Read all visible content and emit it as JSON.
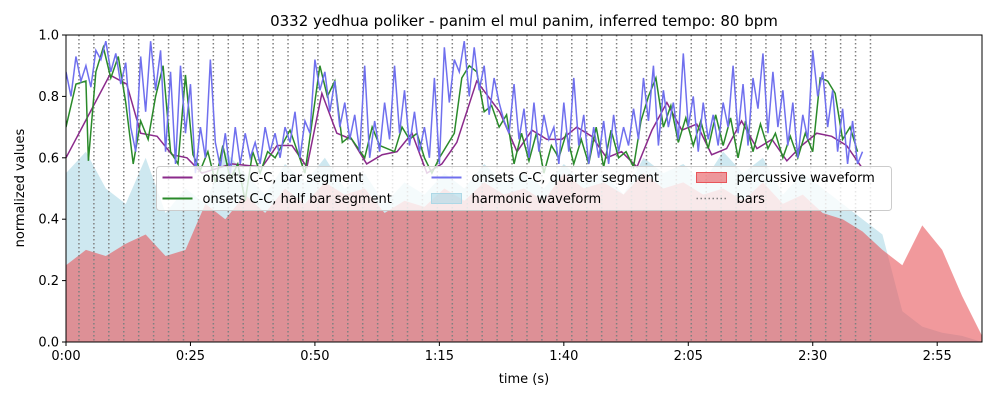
{
  "chart_data": {
    "type": "line",
    "title": "0332 yedhua poliker - panim el mul panim, inferred tempo: 80 bpm",
    "xlabel": "time (s)",
    "ylabel": "normalized values",
    "xlim": [
      0,
      184
    ],
    "ylim": [
      0,
      1
    ],
    "xticks": [
      {
        "value": 0,
        "label": "0:00"
      },
      {
        "value": 25,
        "label": "0:25"
      },
      {
        "value": 50,
        "label": "0:50"
      },
      {
        "value": 75,
        "label": "1:15"
      },
      {
        "value": 100,
        "label": "1:40"
      },
      {
        "value": 125,
        "label": "2:05"
      },
      {
        "value": 150,
        "label": "2:30"
      },
      {
        "value": 175,
        "label": "2:55"
      }
    ],
    "yticks": [
      {
        "value": 0,
        "label": "0.0"
      },
      0.2,
      0.4,
      0.6,
      0.8,
      {
        "value": 1,
        "label": "1.0"
      }
    ],
    "legend": "center",
    "series": [
      {
        "name": "onsets C-C, bar segment",
        "style": "line",
        "color": "#8b2a8b",
        "x": [
          0,
          8.8,
          12.2,
          15,
          18.3,
          21.3,
          24.3,
          27.3,
          33.3,
          39.4,
          42.4,
          45.4,
          48.4,
          51.4,
          54.4,
          57.4,
          60.4,
          63.5,
          66.5,
          69.5,
          72.5,
          75.5,
          78.5,
          82.5,
          87.1,
          90.6,
          93.6,
          96.6,
          99.6,
          102.6,
          105.6,
          108.6,
          111.6,
          114.7,
          117.7,
          120.7,
          123.7,
          126.7,
          129.7,
          132.7,
          135.7,
          138.8,
          141.8,
          144.8,
          147.8,
          150.8,
          153.8,
          156.8,
          159.8
        ],
        "values": [
          0.6,
          0.87,
          0.84,
          0.68,
          0.67,
          0.61,
          0.6,
          0.55,
          0.58,
          0.57,
          0.64,
          0.64,
          0.57,
          0.81,
          0.68,
          0.66,
          0.58,
          0.61,
          0.62,
          0.68,
          0.55,
          0.58,
          0.65,
          0.85,
          0.75,
          0.62,
          0.69,
          0.66,
          0.66,
          0.7,
          0.67,
          0.6,
          0.62,
          0.57,
          0.69,
          0.78,
          0.69,
          0.71,
          0.61,
          0.63,
          0.72,
          0.63,
          0.66,
          0.59,
          0.64,
          0.68,
          0.67,
          0.64,
          0.57
        ]
      },
      {
        "name": "onsets C-C, half bar segment",
        "style": "line",
        "color": "#2a8a2a",
        "x": [
          0,
          2,
          4,
          4.5,
          6,
          7.5,
          9,
          10.5,
          12,
          13.5,
          15,
          16.5,
          18,
          19.5,
          21,
          22.5,
          24,
          25.5,
          27,
          28.5,
          30,
          31.5,
          33,
          34.5,
          36,
          37.5,
          39,
          40.5,
          42,
          45,
          48,
          51,
          52.5,
          54,
          55.5,
          57,
          60,
          61.5,
          63,
          66,
          67.5,
          69,
          70.5,
          72,
          73.5,
          75,
          78,
          79.5,
          81,
          82.5,
          84,
          85.5,
          87,
          88.5,
          90,
          91.5,
          93,
          94.5,
          96,
          97.5,
          99,
          100.5,
          102,
          103.5,
          105,
          106.5,
          108,
          109.5,
          111,
          112.5,
          114,
          115.5,
          117,
          118.5,
          120,
          121.5,
          123,
          124.5,
          126,
          127.5,
          129,
          130.5,
          132,
          133.5,
          135,
          136.5,
          138,
          139.5,
          141,
          142.5,
          144,
          145.5,
          147,
          148.5,
          150,
          151.5,
          153,
          154.5,
          156,
          157.5,
          159
        ],
        "values": [
          0.7,
          0.84,
          0.85,
          0.59,
          0.88,
          0.96,
          0.86,
          0.93,
          0.78,
          0.58,
          0.72,
          0.66,
          0.8,
          0.9,
          0.62,
          0.58,
          0.87,
          0.61,
          0.56,
          0.62,
          0.52,
          0.64,
          0.53,
          0.58,
          0.46,
          0.62,
          0.55,
          0.62,
          0.6,
          0.69,
          0.55,
          0.9,
          0.8,
          0.85,
          0.65,
          0.67,
          0.6,
          0.7,
          0.64,
          0.62,
          0.7,
          0.66,
          0.68,
          0.6,
          0.55,
          0.6,
          0.68,
          0.86,
          0.9,
          0.88,
          0.75,
          0.77,
          0.7,
          0.74,
          0.58,
          0.68,
          0.59,
          0.68,
          0.55,
          0.64,
          0.6,
          0.68,
          0.58,
          0.66,
          0.58,
          0.7,
          0.57,
          0.69,
          0.6,
          0.62,
          0.57,
          0.72,
          0.8,
          0.86,
          0.7,
          0.77,
          0.65,
          0.73,
          0.64,
          0.72,
          0.63,
          0.74,
          0.64,
          0.73,
          0.6,
          0.72,
          0.62,
          0.71,
          0.63,
          0.68,
          0.6,
          0.67,
          0.6,
          0.68,
          0.62,
          0.86,
          0.85,
          0.81,
          0.66,
          0.7,
          0.62
        ]
      },
      {
        "name": "onsets C-C, quarter segment",
        "style": "line",
        "color": "#7070ee",
        "x": [
          0,
          1,
          2,
          3,
          4,
          5,
          6,
          7,
          8,
          9,
          10,
          11,
          12,
          13,
          14,
          15,
          16,
          17,
          18,
          19,
          20,
          21,
          22,
          23,
          24,
          25,
          26,
          27,
          28,
          29,
          30,
          31,
          32,
          33,
          34,
          35,
          36,
          37,
          38,
          39,
          40,
          41,
          42,
          43,
          44,
          45,
          46,
          47,
          48,
          49,
          50,
          51,
          52,
          53,
          54,
          55,
          56,
          57,
          58,
          59,
          60,
          61,
          62,
          63,
          64,
          65,
          66,
          67,
          68,
          69,
          70,
          71,
          72,
          73,
          74,
          75,
          76,
          77,
          78,
          79,
          80,
          81,
          82,
          83,
          84,
          85,
          86,
          87,
          88,
          89,
          90,
          91,
          92,
          93,
          94,
          95,
          96,
          97,
          98,
          99,
          100,
          101,
          102,
          103,
          104,
          105,
          106,
          107,
          108,
          109,
          110,
          111,
          112,
          113,
          114,
          115,
          116,
          117,
          118,
          119,
          120,
          121,
          122,
          123,
          124,
          125,
          126,
          127,
          128,
          129,
          130,
          131,
          132,
          133,
          134,
          135,
          136,
          137,
          138,
          139,
          140,
          141,
          142,
          143,
          144,
          145,
          146,
          147,
          148,
          149,
          150,
          151,
          152,
          153,
          154,
          155,
          156,
          157,
          158,
          159,
          160
        ],
        "values": [
          0.88,
          0.8,
          0.93,
          0.85,
          0.9,
          0.83,
          0.95,
          0.92,
          0.98,
          0.88,
          0.94,
          0.84,
          0.91,
          0.7,
          0.62,
          0.93,
          0.75,
          0.98,
          0.82,
          0.95,
          0.62,
          0.88,
          0.58,
          0.9,
          0.68,
          0.84,
          0.55,
          0.7,
          0.6,
          0.92,
          0.65,
          0.57,
          0.68,
          0.55,
          0.7,
          0.58,
          0.68,
          0.6,
          0.65,
          0.58,
          0.7,
          0.62,
          0.68,
          0.6,
          0.7,
          0.65,
          0.75,
          0.6,
          0.72,
          0.68,
          0.92,
          0.82,
          0.88,
          0.75,
          0.85,
          0.7,
          0.78,
          0.66,
          0.74,
          0.62,
          0.9,
          0.6,
          0.72,
          0.62,
          0.78,
          0.66,
          0.9,
          0.68,
          0.82,
          0.64,
          0.75,
          0.62,
          0.7,
          0.6,
          0.86,
          0.58,
          0.96,
          0.78,
          0.92,
          0.88,
          0.98,
          0.8,
          0.96,
          0.82,
          0.9,
          0.74,
          0.86,
          0.78,
          0.72,
          0.68,
          0.84,
          0.66,
          0.76,
          0.6,
          0.78,
          0.62,
          0.74,
          0.66,
          0.7,
          0.58,
          0.78,
          0.62,
          0.86,
          0.64,
          0.74,
          0.58,
          0.7,
          0.6,
          0.72,
          0.58,
          0.74,
          0.62,
          0.7,
          0.64,
          0.76,
          0.66,
          0.86,
          0.72,
          0.9,
          0.64,
          0.82,
          0.7,
          0.78,
          0.66,
          0.94,
          0.7,
          0.8,
          0.62,
          0.78,
          0.66,
          0.74,
          0.64,
          0.78,
          0.7,
          0.9,
          0.68,
          0.84,
          0.64,
          0.86,
          0.76,
          0.94,
          0.68,
          0.88,
          0.7,
          0.82,
          0.64,
          0.78,
          0.6,
          0.74,
          0.66,
          0.95,
          0.8,
          0.88,
          0.7,
          0.82,
          0.62,
          0.76,
          0.58,
          0.72,
          0.58,
          0.62
        ]
      },
      {
        "name": "harmonic waveform",
        "style": "area",
        "color": "#add8e6",
        "x": [
          0,
          4,
          8,
          12,
          16,
          20,
          24,
          28,
          32,
          36,
          40,
          44,
          48,
          52,
          56,
          60,
          64,
          68,
          72,
          76,
          80,
          84,
          88,
          92,
          96,
          100,
          104,
          108,
          112,
          116,
          120,
          124,
          128,
          132,
          136,
          140,
          144,
          148,
          152,
          156,
          160,
          164,
          168,
          172,
          176,
          180,
          184
        ],
        "values": [
          0.55,
          0.62,
          0.5,
          0.45,
          0.6,
          0.42,
          0.5,
          0.45,
          0.62,
          0.55,
          0.48,
          0.58,
          0.52,
          0.6,
          0.5,
          0.55,
          0.45,
          0.52,
          0.48,
          0.55,
          0.5,
          0.58,
          0.52,
          0.55,
          0.5,
          0.58,
          0.52,
          0.55,
          0.48,
          0.6,
          0.55,
          0.58,
          0.52,
          0.62,
          0.55,
          0.6,
          0.48,
          0.55,
          0.5,
          0.45,
          0.4,
          0.35,
          0.1,
          0.05,
          0.03,
          0.02,
          0
        ]
      },
      {
        "name": "percussive waveform",
        "style": "area",
        "color": "#e8555a",
        "x": [
          0,
          4,
          8,
          12,
          16,
          20,
          24,
          28,
          32,
          36,
          40,
          44,
          48,
          52,
          56,
          60,
          64,
          68,
          72,
          76,
          80,
          84,
          88,
          92,
          96,
          100,
          104,
          108,
          112,
          116,
          120,
          124,
          128,
          132,
          136,
          140,
          144,
          148,
          152,
          156,
          160,
          164,
          168,
          172,
          176,
          180,
          184
        ],
        "values": [
          0.25,
          0.3,
          0.28,
          0.32,
          0.35,
          0.28,
          0.3,
          0.45,
          0.4,
          0.48,
          0.42,
          0.5,
          0.45,
          0.52,
          0.48,
          0.5,
          0.42,
          0.46,
          0.44,
          0.5,
          0.46,
          0.52,
          0.48,
          0.5,
          0.46,
          0.55,
          0.5,
          0.52,
          0.48,
          0.55,
          0.5,
          0.52,
          0.48,
          0.5,
          0.46,
          0.52,
          0.45,
          0.48,
          0.42,
          0.4,
          0.36,
          0.3,
          0.25,
          0.38,
          0.3,
          0.15,
          0.02
        ]
      },
      {
        "name": "bars",
        "style": "vline",
        "color": "#808080",
        "x": [
          2.6,
          5.6,
          8.6,
          11.6,
          14.6,
          17.6,
          20.6,
          23.6,
          26.6,
          29.6,
          32.6,
          35.6,
          38.6,
          41.6,
          44.6,
          47.6,
          50.6,
          53.6,
          56.6,
          59.6,
          62.6,
          65.6,
          68.6,
          71.6,
          74.6,
          77.6,
          80.6,
          83.6,
          86.6,
          89.6,
          92.6,
          95.6,
          98.6,
          101.6,
          104.6,
          107.6,
          110.6,
          113.6,
          116.6,
          119.6,
          122.6,
          125.6,
          128.6,
          131.6,
          134.6,
          137.6,
          140.6,
          143.6,
          146.6,
          149.6,
          152.6,
          155.6,
          158.6,
          161.6
        ]
      }
    ]
  }
}
